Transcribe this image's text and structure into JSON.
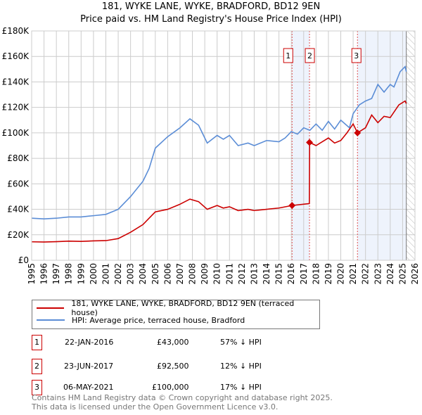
{
  "chart_data": {
    "type": "line",
    "title": "181, WYKE LANE, WYKE, BRADFORD, BD12 9EN",
    "subtitle": "Price paid vs. HM Land Registry's House Price Index (HPI)",
    "xlim": [
      1995,
      2026
    ],
    "ylim": [
      0,
      180000
    ],
    "x_ticks": [
      "1995",
      "1996",
      "1997",
      "1998",
      "1999",
      "2000",
      "2001",
      "2002",
      "2003",
      "2004",
      "2005",
      "2006",
      "2007",
      "2008",
      "2009",
      "2010",
      "2011",
      "2012",
      "2013",
      "2014",
      "2015",
      "2016",
      "2017",
      "2018",
      "2019",
      "2020",
      "2021",
      "2022",
      "2023",
      "2024",
      "2025",
      "2026"
    ],
    "y_ticks": [
      {
        "v": 0,
        "label": "£0"
      },
      {
        "v": 20000,
        "label": "£20K"
      },
      {
        "v": 40000,
        "label": "£40K"
      },
      {
        "v": 60000,
        "label": "£60K"
      },
      {
        "v": 80000,
        "label": "£80K"
      },
      {
        "v": 100000,
        "label": "£100K"
      },
      {
        "v": 120000,
        "label": "£120K"
      },
      {
        "v": 140000,
        "label": "£140K"
      },
      {
        "v": 160000,
        "label": "£160K"
      },
      {
        "v": 180000,
        "label": "£180K"
      }
    ],
    "grid": true,
    "series": [
      {
        "name": "181, WYKE LANE, WYKE, BRADFORD, BD12 9EN (terraced house)",
        "color": "#cc0000",
        "x": [
          1995,
          1996,
          1997,
          1998,
          1999,
          2000,
          2001,
          2002,
          2003,
          2004,
          2004.5,
          2005,
          2006,
          2007,
          2007.8,
          2008.5,
          2009.2,
          2010,
          2010.5,
          2011,
          2011.7,
          2012.5,
          2013,
          2014,
          2015,
          2016.06,
          2017,
          2017.46,
          2017.48,
          2018,
          2018.5,
          2019,
          2019.5,
          2020,
          2020.5,
          2021,
          2021.35,
          2022,
          2022.5,
          2023,
          2023.5,
          2024,
          2024.7,
          2025.2,
          2025.3
        ],
        "y": [
          14500,
          14300,
          14600,
          15000,
          14800,
          15200,
          15400,
          17000,
          22000,
          28000,
          33000,
          38000,
          40000,
          44000,
          48000,
          46000,
          40000,
          43000,
          41000,
          42000,
          39000,
          40000,
          39000,
          40000,
          41000,
          43000,
          44000,
          44500,
          92500,
          90000,
          93000,
          96000,
          92000,
          94000,
          100000,
          107000,
          100000,
          104000,
          114000,
          108000,
          113000,
          112000,
          122000,
          125000,
          123000
        ]
      },
      {
        "name": "HPI: Average price, terraced house, Bradford",
        "color": "#5b8dd6",
        "x": [
          1995,
          1996,
          1997,
          1998,
          1999,
          2000,
          2001,
          2002,
          2003,
          2004,
          2004.5,
          2005,
          2006,
          2007,
          2007.8,
          2008.5,
          2009.2,
          2010,
          2010.5,
          2011,
          2011.7,
          2012.5,
          2013,
          2014,
          2015,
          2015.5,
          2016,
          2016.5,
          2017,
          2017.5,
          2018,
          2018.5,
          2019,
          2019.5,
          2020,
          2020.7,
          2021,
          2021.5,
          2022,
          2022.5,
          2023,
          2023.5,
          2024,
          2024.3,
          2024.8,
          2025.2,
          2025.3
        ],
        "y": [
          33000,
          32500,
          33000,
          34000,
          34000,
          35000,
          36000,
          40000,
          50000,
          62000,
          72000,
          88000,
          97000,
          104000,
          111000,
          106000,
          92000,
          98000,
          95000,
          98000,
          90000,
          92000,
          90000,
          94000,
          93000,
          96000,
          101000,
          99000,
          104000,
          102000,
          107000,
          102000,
          109000,
          103000,
          110000,
          104000,
          115000,
          122000,
          125000,
          127000,
          138000,
          132000,
          138000,
          136000,
          148000,
          152000,
          148000
        ]
      }
    ],
    "sales": [
      {
        "label": "1",
        "x": 2016.06,
        "y": 43000,
        "date": "22-JAN-2016",
        "price": "£43,000",
        "hpi": "57% ↓ HPI"
      },
      {
        "label": "2",
        "x": 2017.47,
        "y": 92500,
        "date": "23-JUN-2017",
        "price": "£92,500",
        "hpi": "12% ↓ HPI"
      },
      {
        "label": "3",
        "x": 2021.35,
        "y": 100000,
        "date": "06-MAY-2021",
        "price": "£100,000",
        "hpi": "17% ↓ HPI"
      }
    ],
    "shaded_ranges": [
      [
        2016.06,
        2017.47
      ],
      [
        2021.35,
        2025.3
      ]
    ],
    "forecast_hatch_from": 2025.3
  },
  "footer": {
    "line1": "Contains HM Land Registry data © Crown copyright and database right 2025.",
    "line2": "This data is licensed under the Open Government Licence v3.0."
  }
}
